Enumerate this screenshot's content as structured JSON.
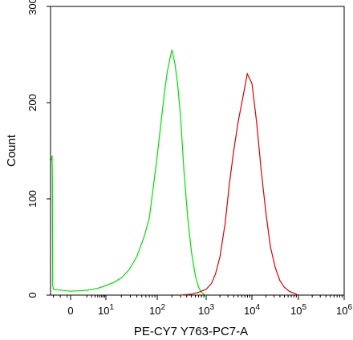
{
  "chart_data": {
    "type": "area",
    "title": "",
    "xlabel": "PE-CY7 Y763-PC7-A",
    "ylabel": "Count",
    "x_scale": "biexponential",
    "xlim": [
      -300,
      1000000
    ],
    "ylim": [
      0,
      300
    ],
    "x_tick_labels": [
      {
        "value": 0,
        "base": "0",
        "exp": ""
      },
      {
        "value": 10,
        "base": "10",
        "exp": "1"
      },
      {
        "value": 100,
        "base": "10",
        "exp": "2"
      },
      {
        "value": 1000,
        "base": "10",
        "exp": "3"
      },
      {
        "value": 10000,
        "base": "10",
        "exp": "4"
      },
      {
        "value": 100000,
        "base": "10",
        "exp": "5"
      },
      {
        "value": 1000000,
        "base": "10",
        "exp": "6"
      }
    ],
    "y_ticks": [
      0,
      100,
      200,
      300
    ],
    "grid": false,
    "series": [
      {
        "color": "#00e000",
        "x": [
          -280,
          -270,
          -265,
          -260,
          -250,
          0,
          2,
          5,
          8,
          10,
          14,
          20,
          28,
          40,
          55,
          70,
          85,
          100,
          120,
          140,
          160,
          180,
          200,
          230,
          260,
          300,
          350,
          420,
          500,
          600,
          700,
          800,
          900,
          1000
        ],
        "y": [
          140,
          145,
          120,
          10,
          6,
          4,
          5,
          7,
          9,
          10,
          13,
          18,
          26,
          40,
          60,
          80,
          115,
          145,
          180,
          210,
          232,
          245,
          255,
          240,
          220,
          185,
          130,
          80,
          45,
          20,
          8,
          3,
          1,
          0
        ]
      },
      {
        "color": "#dd0000",
        "x": [
          300,
          500,
          700,
          1000,
          1300,
          1600,
          2000,
          2600,
          3200,
          4000,
          5000,
          6300,
          7900,
          10000,
          12600,
          15800,
          20000,
          25000,
          32000,
          40000,
          50000,
          63000,
          79000,
          100000
        ],
        "y": [
          0,
          1,
          3,
          6,
          12,
          22,
          40,
          75,
          115,
          150,
          180,
          205,
          230,
          220,
          180,
          130,
          85,
          50,
          28,
          15,
          8,
          4,
          2,
          0
        ]
      }
    ]
  }
}
